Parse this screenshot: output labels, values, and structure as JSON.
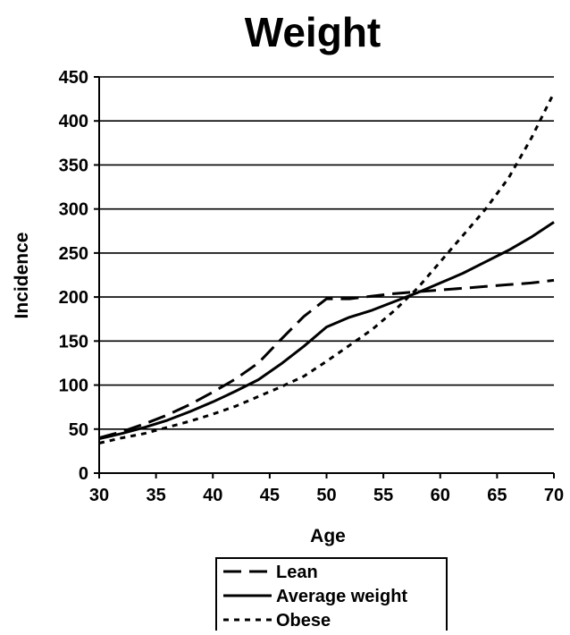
{
  "chart_data": {
    "type": "line",
    "title": "Weight",
    "xlabel": "Age",
    "ylabel": "Incidence",
    "xlim": [
      30,
      70
    ],
    "ylim": [
      0,
      450
    ],
    "xticks": [
      30,
      35,
      40,
      45,
      50,
      55,
      60,
      65,
      70
    ],
    "yticks": [
      0,
      50,
      100,
      150,
      200,
      250,
      300,
      350,
      400,
      450
    ],
    "xtick_labels": [
      "30",
      "35",
      "40",
      "45",
      "50",
      "55",
      "60",
      "65",
      "70"
    ],
    "ytick_labels": [
      "0",
      "50",
      "100",
      "150",
      "200",
      "250",
      "300",
      "350",
      "400",
      "450"
    ],
    "grid": "horizontal",
    "legend_position": "bottom",
    "series": [
      {
        "name": "Lean",
        "style": "long-dash",
        "color": "#000000",
        "x": [
          30,
          32,
          34,
          36,
          38,
          40,
          42,
          44,
          46,
          48,
          50,
          52,
          54,
          56,
          58,
          60,
          62,
          64,
          66,
          68,
          70
        ],
        "y": [
          40,
          47,
          56,
          66,
          78,
          92,
          107,
          125,
          152,
          178,
          198,
          198,
          201,
          204,
          206,
          208,
          210,
          212,
          214,
          216,
          219
        ]
      },
      {
        "name": "Average weight",
        "style": "solid",
        "color": "#000000",
        "x": [
          30,
          32,
          34,
          36,
          38,
          40,
          42,
          44,
          46,
          48,
          50,
          52,
          54,
          56,
          58,
          60,
          62,
          64,
          66,
          68,
          70
        ],
        "y": [
          39,
          45,
          52,
          60,
          70,
          81,
          93,
          106,
          124,
          144,
          166,
          177,
          185,
          195,
          205,
          216,
          227,
          240,
          253,
          268,
          285
        ]
      },
      {
        "name": "Obese",
        "style": "short-dash",
        "color": "#000000",
        "x": [
          30,
          32,
          34,
          36,
          38,
          40,
          42,
          44,
          46,
          48,
          50,
          52,
          54,
          56,
          58,
          60,
          62,
          64,
          66,
          68,
          70
        ],
        "y": [
          34,
          40,
          45,
          52,
          59,
          67,
          76,
          87,
          98,
          110,
          127,
          145,
          163,
          185,
          210,
          240,
          270,
          300,
          335,
          380,
          432
        ]
      }
    ]
  }
}
